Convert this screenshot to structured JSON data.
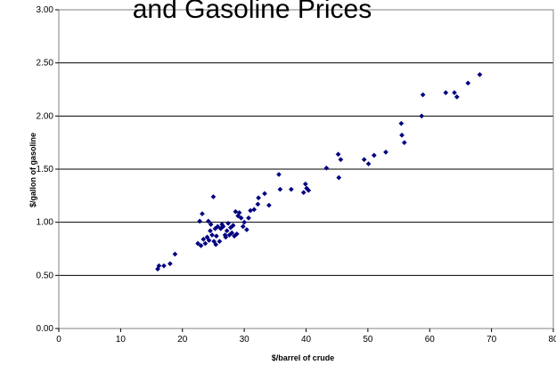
{
  "chart_data": {
    "type": "scatter",
    "title": "and Gasoline Prices",
    "xlabel": "$/barrel of crude",
    "ylabel": "$/gallon of gasoline",
    "xlim": [
      0,
      80
    ],
    "ylim": [
      0,
      3
    ],
    "x_ticks": [
      "0",
      "10",
      "20",
      "30",
      "40",
      "50",
      "60",
      "70",
      "80"
    ],
    "y_ticks": [
      "0.00",
      "0.50",
      "1.00",
      "1.50",
      "2.00",
      "2.50",
      "3.00"
    ],
    "grid": "horizontal",
    "legend": "none",
    "marker": "diamond",
    "colors": {
      "marker": "#000080",
      "grid": "#000000",
      "background": "#ffffff"
    },
    "points": [
      [
        16.0,
        0.56
      ],
      [
        16.2,
        0.59
      ],
      [
        17.0,
        0.59
      ],
      [
        18.0,
        0.61
      ],
      [
        18.8,
        0.7
      ],
      [
        22.5,
        0.8
      ],
      [
        22.8,
        1.01
      ],
      [
        23.0,
        0.78
      ],
      [
        23.2,
        1.08
      ],
      [
        23.4,
        0.84
      ],
      [
        23.7,
        0.8
      ],
      [
        24.0,
        0.86
      ],
      [
        24.2,
        1.01
      ],
      [
        24.3,
        0.83
      ],
      [
        24.5,
        0.92
      ],
      [
        24.6,
        0.98
      ],
      [
        24.8,
        0.88
      ],
      [
        25.0,
        1.24
      ],
      [
        25.1,
        0.82
      ],
      [
        25.3,
        0.94
      ],
      [
        25.4,
        0.79
      ],
      [
        25.5,
        0.87
      ],
      [
        25.7,
        0.96
      ],
      [
        26.0,
        0.82
      ],
      [
        26.2,
        0.94
      ],
      [
        26.4,
        0.98
      ],
      [
        26.6,
        0.96
      ],
      [
        26.9,
        0.88
      ],
      [
        27.0,
        0.86
      ],
      [
        27.2,
        0.92
      ],
      [
        27.4,
        0.99
      ],
      [
        27.6,
        0.88
      ],
      [
        27.8,
        0.95
      ],
      [
        28.0,
        0.9
      ],
      [
        28.2,
        0.97
      ],
      [
        28.4,
        0.87
      ],
      [
        28.6,
        1.1
      ],
      [
        28.8,
        0.89
      ],
      [
        29.0,
        1.06
      ],
      [
        29.2,
        1.09
      ],
      [
        29.5,
        1.04
      ],
      [
        29.8,
        0.96
      ],
      [
        30.0,
        1.0
      ],
      [
        30.4,
        0.93
      ],
      [
        30.7,
        1.04
      ],
      [
        31.0,
        1.11
      ],
      [
        31.6,
        1.12
      ],
      [
        32.2,
        1.17
      ],
      [
        32.3,
        1.23
      ],
      [
        33.3,
        1.27
      ],
      [
        34.0,
        1.16
      ],
      [
        35.6,
        1.45
      ],
      [
        35.8,
        1.31
      ],
      [
        37.6,
        1.31
      ],
      [
        39.6,
        1.28
      ],
      [
        39.9,
        1.36
      ],
      [
        40.1,
        1.32
      ],
      [
        40.4,
        1.3
      ],
      [
        43.3,
        1.51
      ],
      [
        45.2,
        1.64
      ],
      [
        45.3,
        1.42
      ],
      [
        45.6,
        1.59
      ],
      [
        49.4,
        1.59
      ],
      [
        50.1,
        1.55
      ],
      [
        51.0,
        1.63
      ],
      [
        52.9,
        1.66
      ],
      [
        55.4,
        1.93
      ],
      [
        55.5,
        1.82
      ],
      [
        55.9,
        1.75
      ],
      [
        58.7,
        2.0
      ],
      [
        58.9,
        2.2
      ],
      [
        62.6,
        2.22
      ],
      [
        64.0,
        2.22
      ],
      [
        64.4,
        2.18
      ],
      [
        66.2,
        2.31
      ],
      [
        68.1,
        2.39
      ]
    ]
  }
}
